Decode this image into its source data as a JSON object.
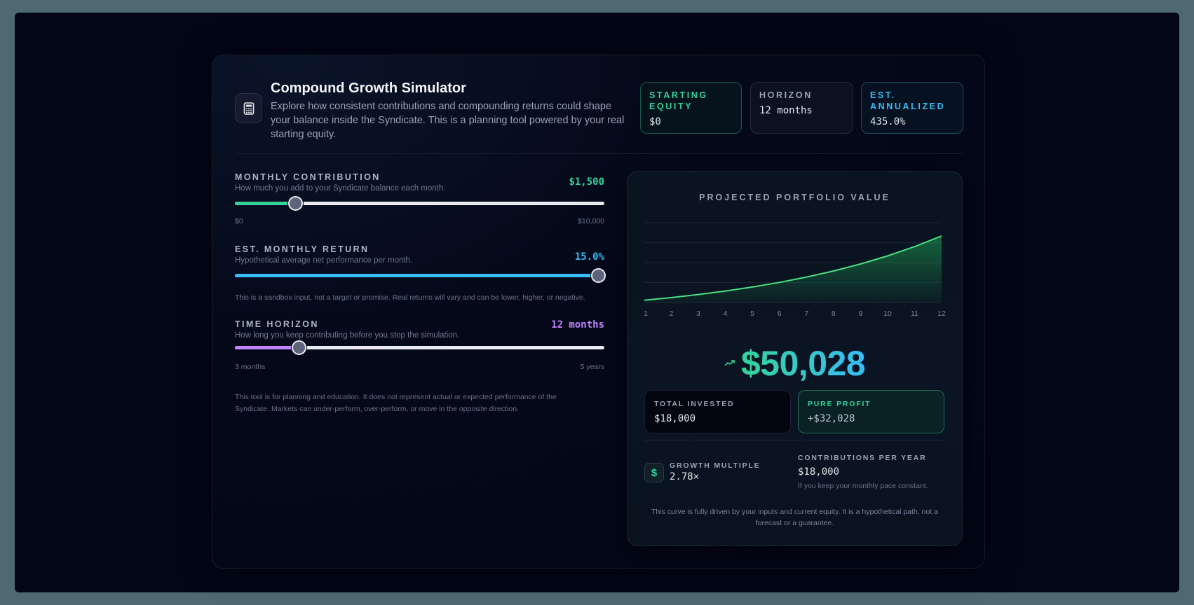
{
  "header": {
    "title": "Compound Growth Simulator",
    "subtitle": "Explore how consistent contributions and compounding returns could shape your balance inside the Syndicate. This is a planning tool powered by your real starting equity.",
    "icon": "calculator-icon"
  },
  "stats": {
    "starting_equity": {
      "label": "Starting Equity",
      "value": "$0"
    },
    "horizon": {
      "label": "Horizon",
      "value": "12 months"
    },
    "annualized": {
      "label": "Est. Annualized",
      "value": "435.0%"
    }
  },
  "controls": {
    "contribution": {
      "name": "MONTHLY CONTRIBUTION",
      "description": "How much you add to your Syndicate balance each month.",
      "value": "$1,500",
      "min_label": "$0",
      "max_label": "$10,000",
      "fill_percent": 16.4,
      "color": "#34d399"
    },
    "monthly_return": {
      "name": "EST. MONTHLY RETURN",
      "description": "Hypothetical average net performance per month.",
      "value": "15.0%",
      "fill_percent": 100,
      "color": "#38bdf8",
      "note": "This is a sandbox input, not a target or promise. Real returns will vary and can be lower, higher, or negative."
    },
    "horizon": {
      "name": "TIME HORIZON",
      "description": "How long you keep contributing before you stop the simulation.",
      "value": "12 months",
      "min_label": "3 months",
      "max_label": "5 years",
      "fill_percent": 17.2,
      "color": "#c084fc"
    },
    "disclaimer": "This tool is for planning and education. It does not represent actual or expected performance of the Syndicate. Markets can under-perform, over-perform, or move in the opposite direction."
  },
  "result": {
    "chart_title": "PROJECTED PORTFOLIO VALUE",
    "projected_value": "$50,028",
    "total_invested": {
      "label": "TOTAL INVESTED",
      "value": "$18,000"
    },
    "pure_profit": {
      "label": "PURE PROFIT",
      "value": "+$32,028"
    },
    "growth_multiple": {
      "label": "GROWTH MULTIPLE",
      "value": "2.78×"
    },
    "contributions_per_year": {
      "label": "CONTRIBUTIONS PER YEAR",
      "value": "$18,000",
      "note": "If you keep your monthly pace constant."
    },
    "footnote": "This curve is fully driven by your inputs and current equity. It is a hypothetical path, not a forecast or a guarantee."
  },
  "chart_data": {
    "type": "area",
    "title": "PROJECTED PORTFOLIO VALUE",
    "x": [
      "1",
      "2",
      "3",
      "4",
      "5",
      "6",
      "7",
      "8",
      "9",
      "10",
      "11",
      "12"
    ],
    "values": [
      1725,
      3709,
      5990,
      8614,
      11631,
      15100,
      19090,
      23679,
      28956,
      35024,
      42003,
      50028
    ],
    "xlabel": "",
    "ylabel": "",
    "ylim": [
      0,
      60000
    ],
    "grid": true,
    "gridlines": 5,
    "line_color": "#4ade80",
    "legend": "none"
  }
}
